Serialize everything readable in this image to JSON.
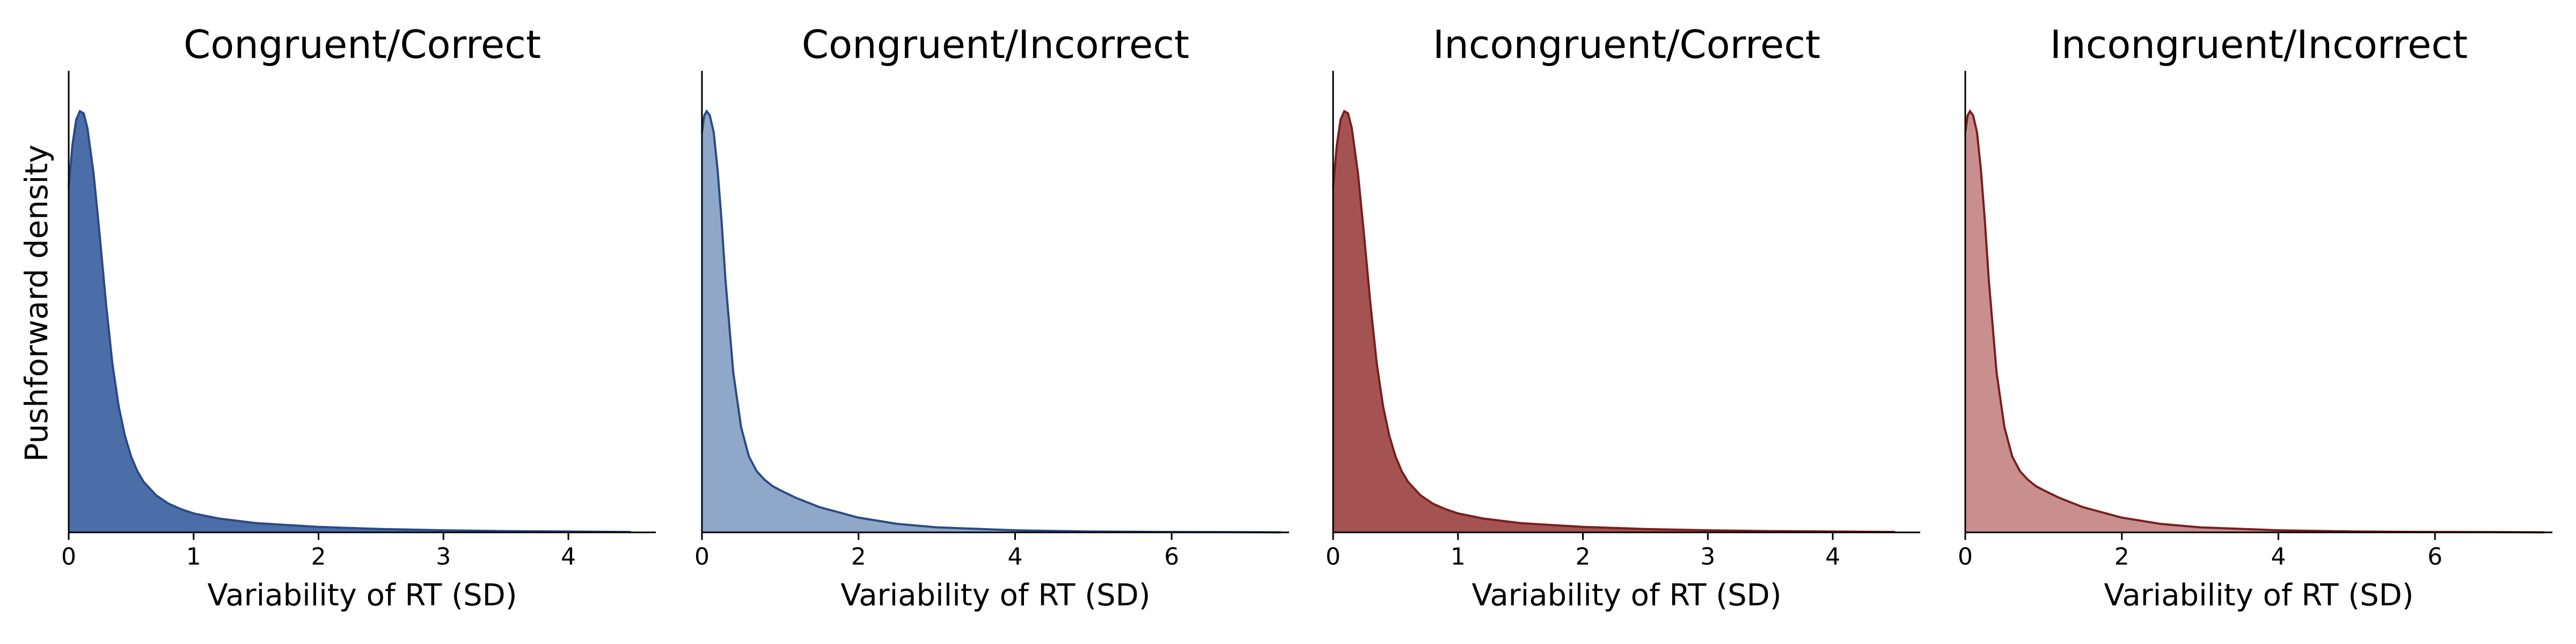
{
  "figure": {
    "ylabel": "Pushforward density"
  },
  "chart_data": [
    {
      "type": "area",
      "title": "Congruent/Correct",
      "xlabel": "Variability of RT (SD)",
      "ylabel": "Pushforward density",
      "xlim": [
        0,
        4.7
      ],
      "ylim": [
        0,
        1.05
      ],
      "xticks": [
        0,
        1,
        2,
        3,
        4
      ],
      "fill": "#4c6ea8",
      "stroke": "#2a4a84",
      "x": [
        0,
        0.03,
        0.06,
        0.09,
        0.12,
        0.15,
        0.2,
        0.25,
        0.3,
        0.35,
        0.4,
        0.45,
        0.5,
        0.55,
        0.6,
        0.7,
        0.8,
        0.9,
        1.0,
        1.2,
        1.5,
        2.0,
        2.5,
        3.0,
        3.5,
        4.0,
        4.5
      ],
      "y": [
        0.82,
        0.92,
        0.98,
        1.0,
        0.995,
        0.96,
        0.85,
        0.7,
        0.54,
        0.4,
        0.3,
        0.23,
        0.18,
        0.145,
        0.12,
        0.088,
        0.068,
        0.055,
        0.045,
        0.033,
        0.022,
        0.013,
        0.008,
        0.005,
        0.003,
        0.002,
        0.001
      ]
    },
    {
      "type": "area",
      "title": "Congruent/Incorrect",
      "xlabel": "Variability of RT (SD)",
      "ylabel": "",
      "xlim": [
        0,
        7.5
      ],
      "ylim": [
        0,
        1.05
      ],
      "xticks": [
        0,
        2,
        4,
        6
      ],
      "fill": "#8fa8c9",
      "stroke": "#2a4a84",
      "x": [
        0,
        0.03,
        0.06,
        0.1,
        0.15,
        0.2,
        0.25,
        0.3,
        0.4,
        0.5,
        0.6,
        0.7,
        0.8,
        0.9,
        1.0,
        1.2,
        1.5,
        2.0,
        2.5,
        3.0,
        4.0,
        5.0,
        6.0,
        7.0,
        7.4
      ],
      "y": [
        0.95,
        0.99,
        1.0,
        0.99,
        0.95,
        0.86,
        0.74,
        0.6,
        0.38,
        0.25,
        0.18,
        0.145,
        0.125,
        0.11,
        0.1,
        0.082,
        0.06,
        0.035,
        0.02,
        0.012,
        0.005,
        0.002,
        0.001,
        0.0005,
        0
      ]
    },
    {
      "type": "area",
      "title": "Incongruent/Correct",
      "xlabel": "Variability of RT (SD)",
      "ylabel": "",
      "xlim": [
        0,
        4.7
      ],
      "ylim": [
        0,
        1.05
      ],
      "xticks": [
        0,
        1,
        2,
        3,
        4
      ],
      "fill": "#a55252",
      "stroke": "#7a1e1e",
      "x": [
        0,
        0.03,
        0.06,
        0.09,
        0.12,
        0.15,
        0.2,
        0.25,
        0.3,
        0.35,
        0.4,
        0.45,
        0.5,
        0.55,
        0.6,
        0.7,
        0.8,
        0.9,
        1.0,
        1.2,
        1.5,
        2.0,
        2.5,
        3.0,
        3.5,
        4.0,
        4.5
      ],
      "y": [
        0.82,
        0.92,
        0.98,
        1.0,
        0.995,
        0.96,
        0.85,
        0.7,
        0.54,
        0.4,
        0.3,
        0.23,
        0.18,
        0.145,
        0.12,
        0.088,
        0.068,
        0.055,
        0.045,
        0.033,
        0.022,
        0.013,
        0.008,
        0.005,
        0.003,
        0.002,
        0.001
      ]
    },
    {
      "type": "area",
      "title": "Incongruent/Incorrect",
      "xlabel": "Variability of RT (SD)",
      "ylabel": "",
      "xlim": [
        0,
        7.5
      ],
      "ylim": [
        0,
        1.05
      ],
      "xticks": [
        0,
        2,
        4,
        6
      ],
      "fill": "#c98f8f",
      "stroke": "#7a1e1e",
      "x": [
        0,
        0.03,
        0.06,
        0.1,
        0.15,
        0.2,
        0.25,
        0.3,
        0.4,
        0.5,
        0.6,
        0.7,
        0.8,
        0.9,
        1.0,
        1.2,
        1.5,
        2.0,
        2.5,
        3.0,
        4.0,
        5.0,
        6.0,
        7.0,
        7.4
      ],
      "y": [
        0.95,
        0.99,
        1.0,
        0.99,
        0.95,
        0.86,
        0.74,
        0.6,
        0.38,
        0.25,
        0.18,
        0.145,
        0.125,
        0.11,
        0.1,
        0.082,
        0.06,
        0.035,
        0.02,
        0.012,
        0.005,
        0.002,
        0.001,
        0.0005,
        0
      ]
    }
  ]
}
